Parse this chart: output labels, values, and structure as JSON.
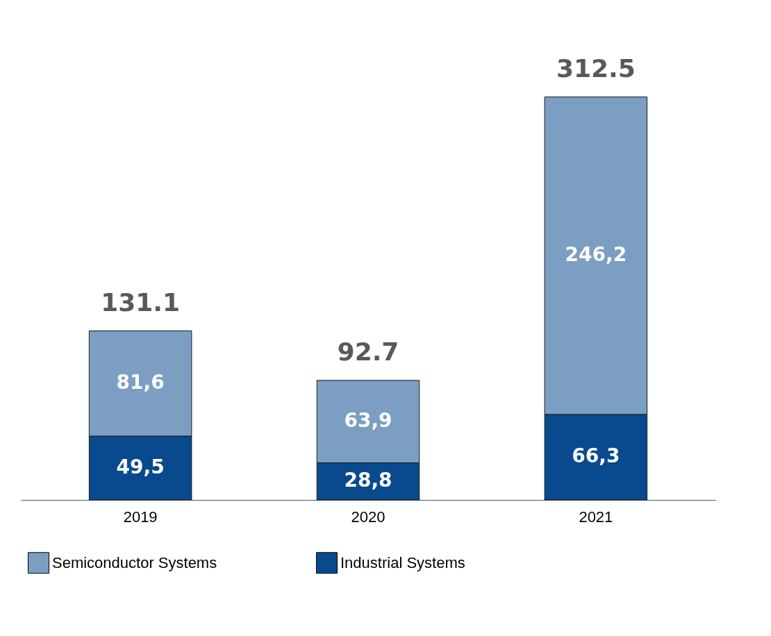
{
  "chart_data": {
    "type": "bar",
    "stacked": true,
    "categories": [
      "2019",
      "2020",
      "2021"
    ],
    "series": [
      {
        "name": "Industrial Systems",
        "color": "#094a8e",
        "values": [
          49.5,
          28.8,
          66.3
        ],
        "value_labels": [
          "49,5",
          "28,8",
          "66,3"
        ]
      },
      {
        "name": "Semiconductor Systems",
        "color": "#7b9ec2",
        "values": [
          81.6,
          63.9,
          246.2
        ],
        "value_labels": [
          "81,6",
          "63,9",
          "246,2"
        ]
      }
    ],
    "totals": [
      "131.1",
      "92.7",
      "312.5"
    ],
    "legend": "bottom",
    "grid": false
  }
}
